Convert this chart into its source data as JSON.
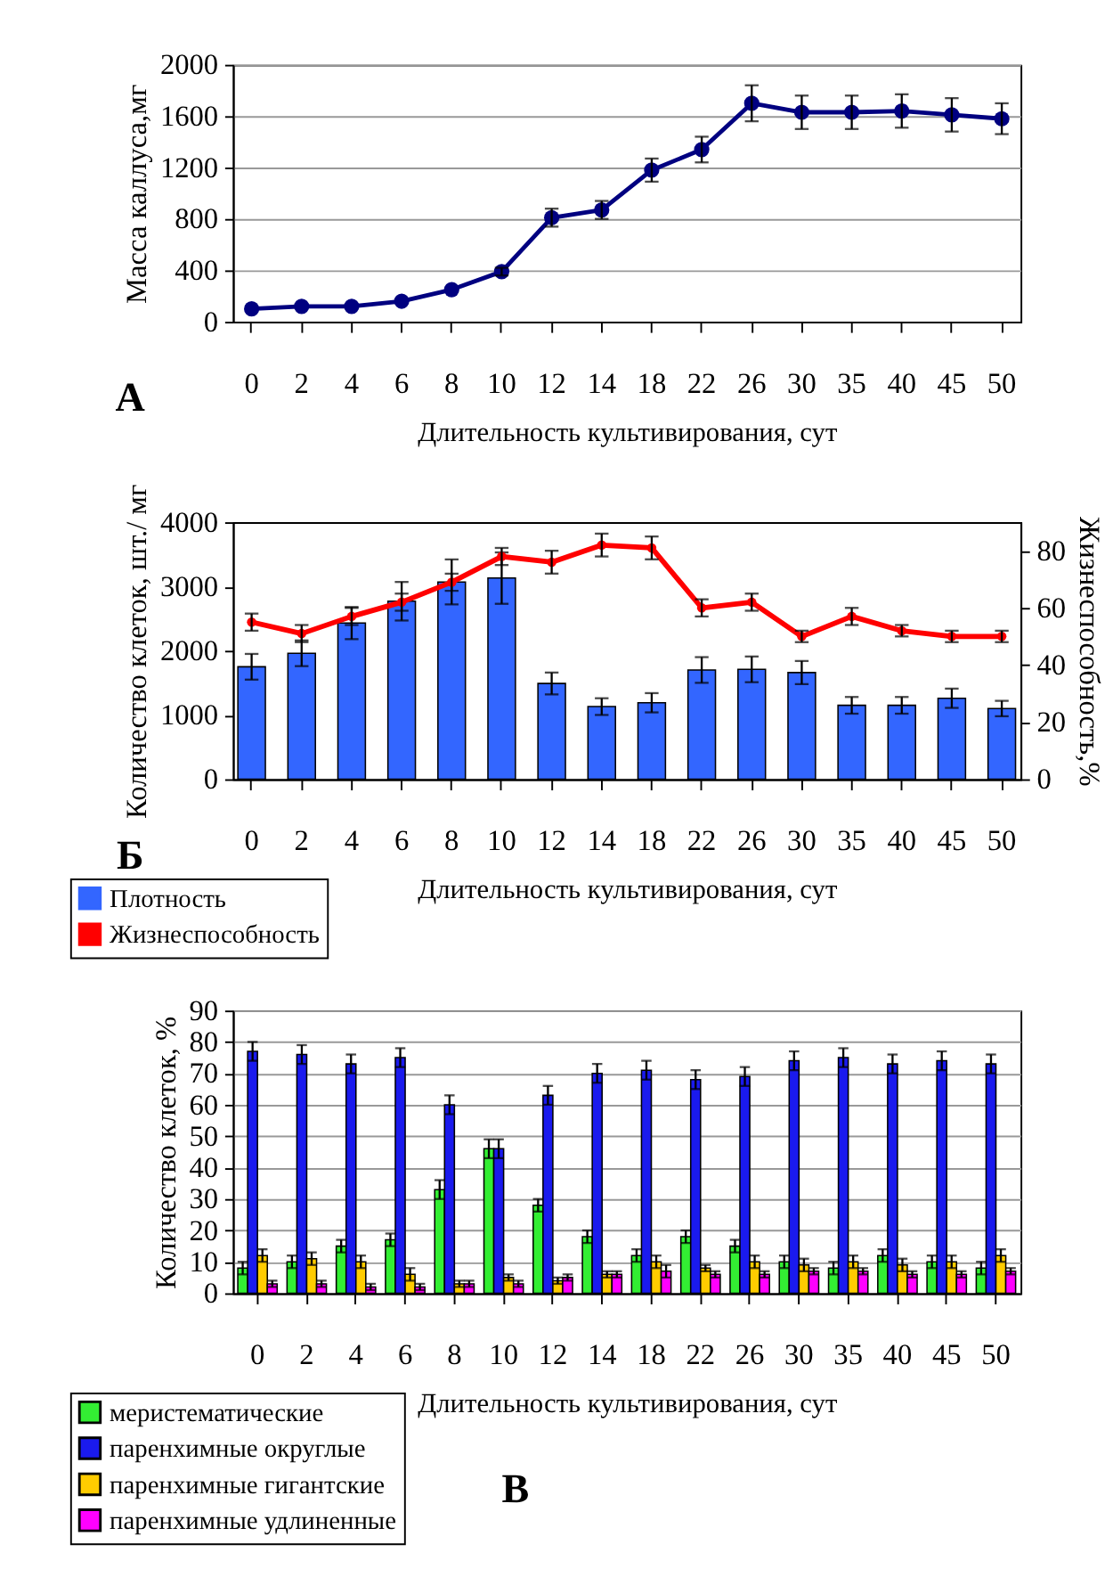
{
  "chart_data": [
    {
      "type": "line",
      "ylabel": "Масса каллуса,мг",
      "xlabel": "Длительность культивирования, сут",
      "annotations": [
        "А"
      ],
      "categories": [
        "0",
        "2",
        "4",
        "6",
        "8",
        "10",
        "12",
        "14",
        "18",
        "22",
        "26",
        "30",
        "35",
        "40",
        "45",
        "50"
      ],
      "series": [
        {
          "color": "#000080",
          "values": [
            100,
            120,
            120,
            160,
            250,
            390,
            810,
            870,
            1180,
            1340,
            1700,
            1630,
            1630,
            1640,
            1610,
            1580
          ],
          "errors": [
            null,
            null,
            null,
            null,
            null,
            30,
            70,
            70,
            90,
            100,
            140,
            130,
            130,
            130,
            130,
            120
          ]
        }
      ],
      "ylim": [
        0,
        2000
      ],
      "yticks": [
        0,
        400,
        800,
        1200,
        1600,
        2000
      ],
      "grid": "y",
      "marker": "circle",
      "legend": false
    },
    {
      "type": "bar",
      "ylabel": "Количество клеток, шт./ мг",
      "y2label": "Жизнеспособность,%",
      "xlabel": "Длительность культивирования, сут",
      "annotations": [
        "Б"
      ],
      "categories": [
        "0",
        "2",
        "4",
        "6",
        "8",
        "10",
        "12",
        "14",
        "18",
        "22",
        "26",
        "30",
        "35",
        "40",
        "45",
        "50"
      ],
      "series": [
        {
          "name": "Плотность",
          "color": "#3366ff",
          "values": [
            1750,
            1960,
            2430,
            2770,
            3070,
            3130,
            1490,
            1130,
            1190,
            1700,
            1710,
            1660,
            1150,
            1150,
            1260,
            1100
          ],
          "errors": [
            200,
            200,
            250,
            300,
            350,
            400,
            170,
            130,
            150,
            200,
            200,
            180,
            130,
            130,
            150,
            120
          ]
        },
        {
          "name": "Жизнеспособность",
          "type": "line",
          "axis": "y2",
          "color": "#ff0000",
          "values": [
            55,
            51,
            57,
            62,
            69,
            78,
            76,
            82,
            81,
            60,
            62,
            50,
            57,
            52,
            50,
            50
          ],
          "errors": [
            3,
            3,
            3,
            3,
            3,
            3,
            4,
            4,
            4,
            3,
            3,
            2,
            3,
            2,
            2,
            2
          ]
        }
      ],
      "ylim": [
        0,
        4000
      ],
      "yticks": [
        0,
        1000,
        2000,
        3000,
        4000
      ],
      "y2lim": [
        0,
        90
      ],
      "y2ticks": [
        0,
        20,
        40,
        60,
        80
      ],
      "marker": "circle",
      "legend": "bottom left"
    },
    {
      "type": "bar",
      "ylabel": "Количество клеток, %",
      "xlabel": "Длительность культивирования, сут",
      "annotations": [
        "В"
      ],
      "categories": [
        "0",
        "2",
        "4",
        "6",
        "8",
        "10",
        "12",
        "14",
        "18",
        "22",
        "26",
        "30",
        "35",
        "40",
        "45",
        "50"
      ],
      "series": [
        {
          "name": "меристематические",
          "color": "#33ee33",
          "values": [
            8,
            10,
            15,
            17,
            33,
            46,
            28,
            18,
            12,
            18,
            15,
            10,
            8,
            12,
            10,
            8
          ],
          "errors": [
            2,
            2,
            2,
            2,
            3,
            3,
            2,
            2,
            2,
            2,
            2,
            2,
            2,
            2,
            2,
            2
          ]
        },
        {
          "name": "паренхимные округлые",
          "color": "#1a1aee",
          "values": [
            77,
            76,
            73,
            75,
            60,
            46,
            63,
            70,
            71,
            68,
            69,
            74,
            75,
            73,
            74,
            73
          ],
          "errors": [
            3,
            3,
            3,
            3,
            3,
            3,
            3,
            3,
            3,
            3,
            3,
            3,
            3,
            3,
            3,
            3
          ]
        },
        {
          "name": "паренхимные гигантские",
          "color": "#ffcc00",
          "values": [
            12,
            11,
            10,
            6,
            3,
            5,
            4,
            6,
            10,
            8,
            10,
            9,
            10,
            9,
            10,
            12
          ],
          "errors": [
            2,
            2,
            2,
            2,
            1,
            1,
            1,
            1,
            2,
            1,
            2,
            2,
            2,
            2,
            2,
            2
          ]
        },
        {
          "name": "паренхимные удлиненные",
          "color": "#ff00ff",
          "values": [
            3,
            3,
            2,
            2,
            3,
            3,
            5,
            6,
            7,
            6,
            6,
            7,
            7,
            6,
            6,
            7
          ],
          "errors": [
            1,
            1,
            1,
            1,
            1,
            1,
            1,
            1,
            2,
            1,
            1,
            1,
            1,
            1,
            1,
            1
          ]
        }
      ],
      "ylim": [
        0,
        90
      ],
      "yticks": [
        0,
        10,
        20,
        30,
        40,
        50,
        60,
        70,
        80,
        90
      ],
      "grid": "y",
      "legend": "bottom left"
    }
  ]
}
